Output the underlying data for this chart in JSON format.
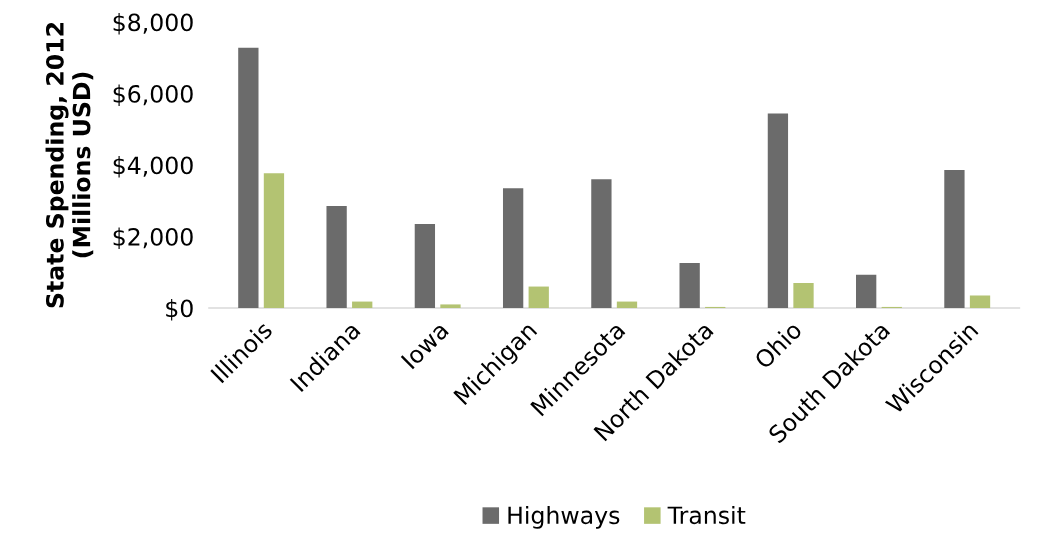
{
  "chart_data": {
    "type": "bar",
    "ylabel": "State Spending, 2012\n(Millions USD)",
    "categories": [
      "Illinois",
      "Indiana",
      "Iowa",
      "Michigan",
      "Minnesota",
      "North Dakota",
      "Ohio",
      "South Dakota",
      "Wisconsin"
    ],
    "series": [
      {
        "name": "Highways",
        "color": "#6b6b6b",
        "values": [
          7280,
          2850,
          2350,
          3350,
          3600,
          1260,
          5440,
          930,
          3860
        ]
      },
      {
        "name": "Transit",
        "color": "#b3c372",
        "values": [
          3770,
          180,
          100,
          600,
          180,
          30,
          700,
          30,
          350
        ]
      }
    ],
    "ylim": [
      0,
      8000
    ],
    "yticks": [
      {
        "value": 0,
        "label": "$0"
      },
      {
        "value": 2000,
        "label": "$2,000"
      },
      {
        "value": 4000,
        "label": "$4,000"
      },
      {
        "value": 6000,
        "label": "$6,000"
      },
      {
        "value": 8000,
        "label": "$8,000"
      }
    ],
    "grid": false,
    "legend": "bottom"
  }
}
